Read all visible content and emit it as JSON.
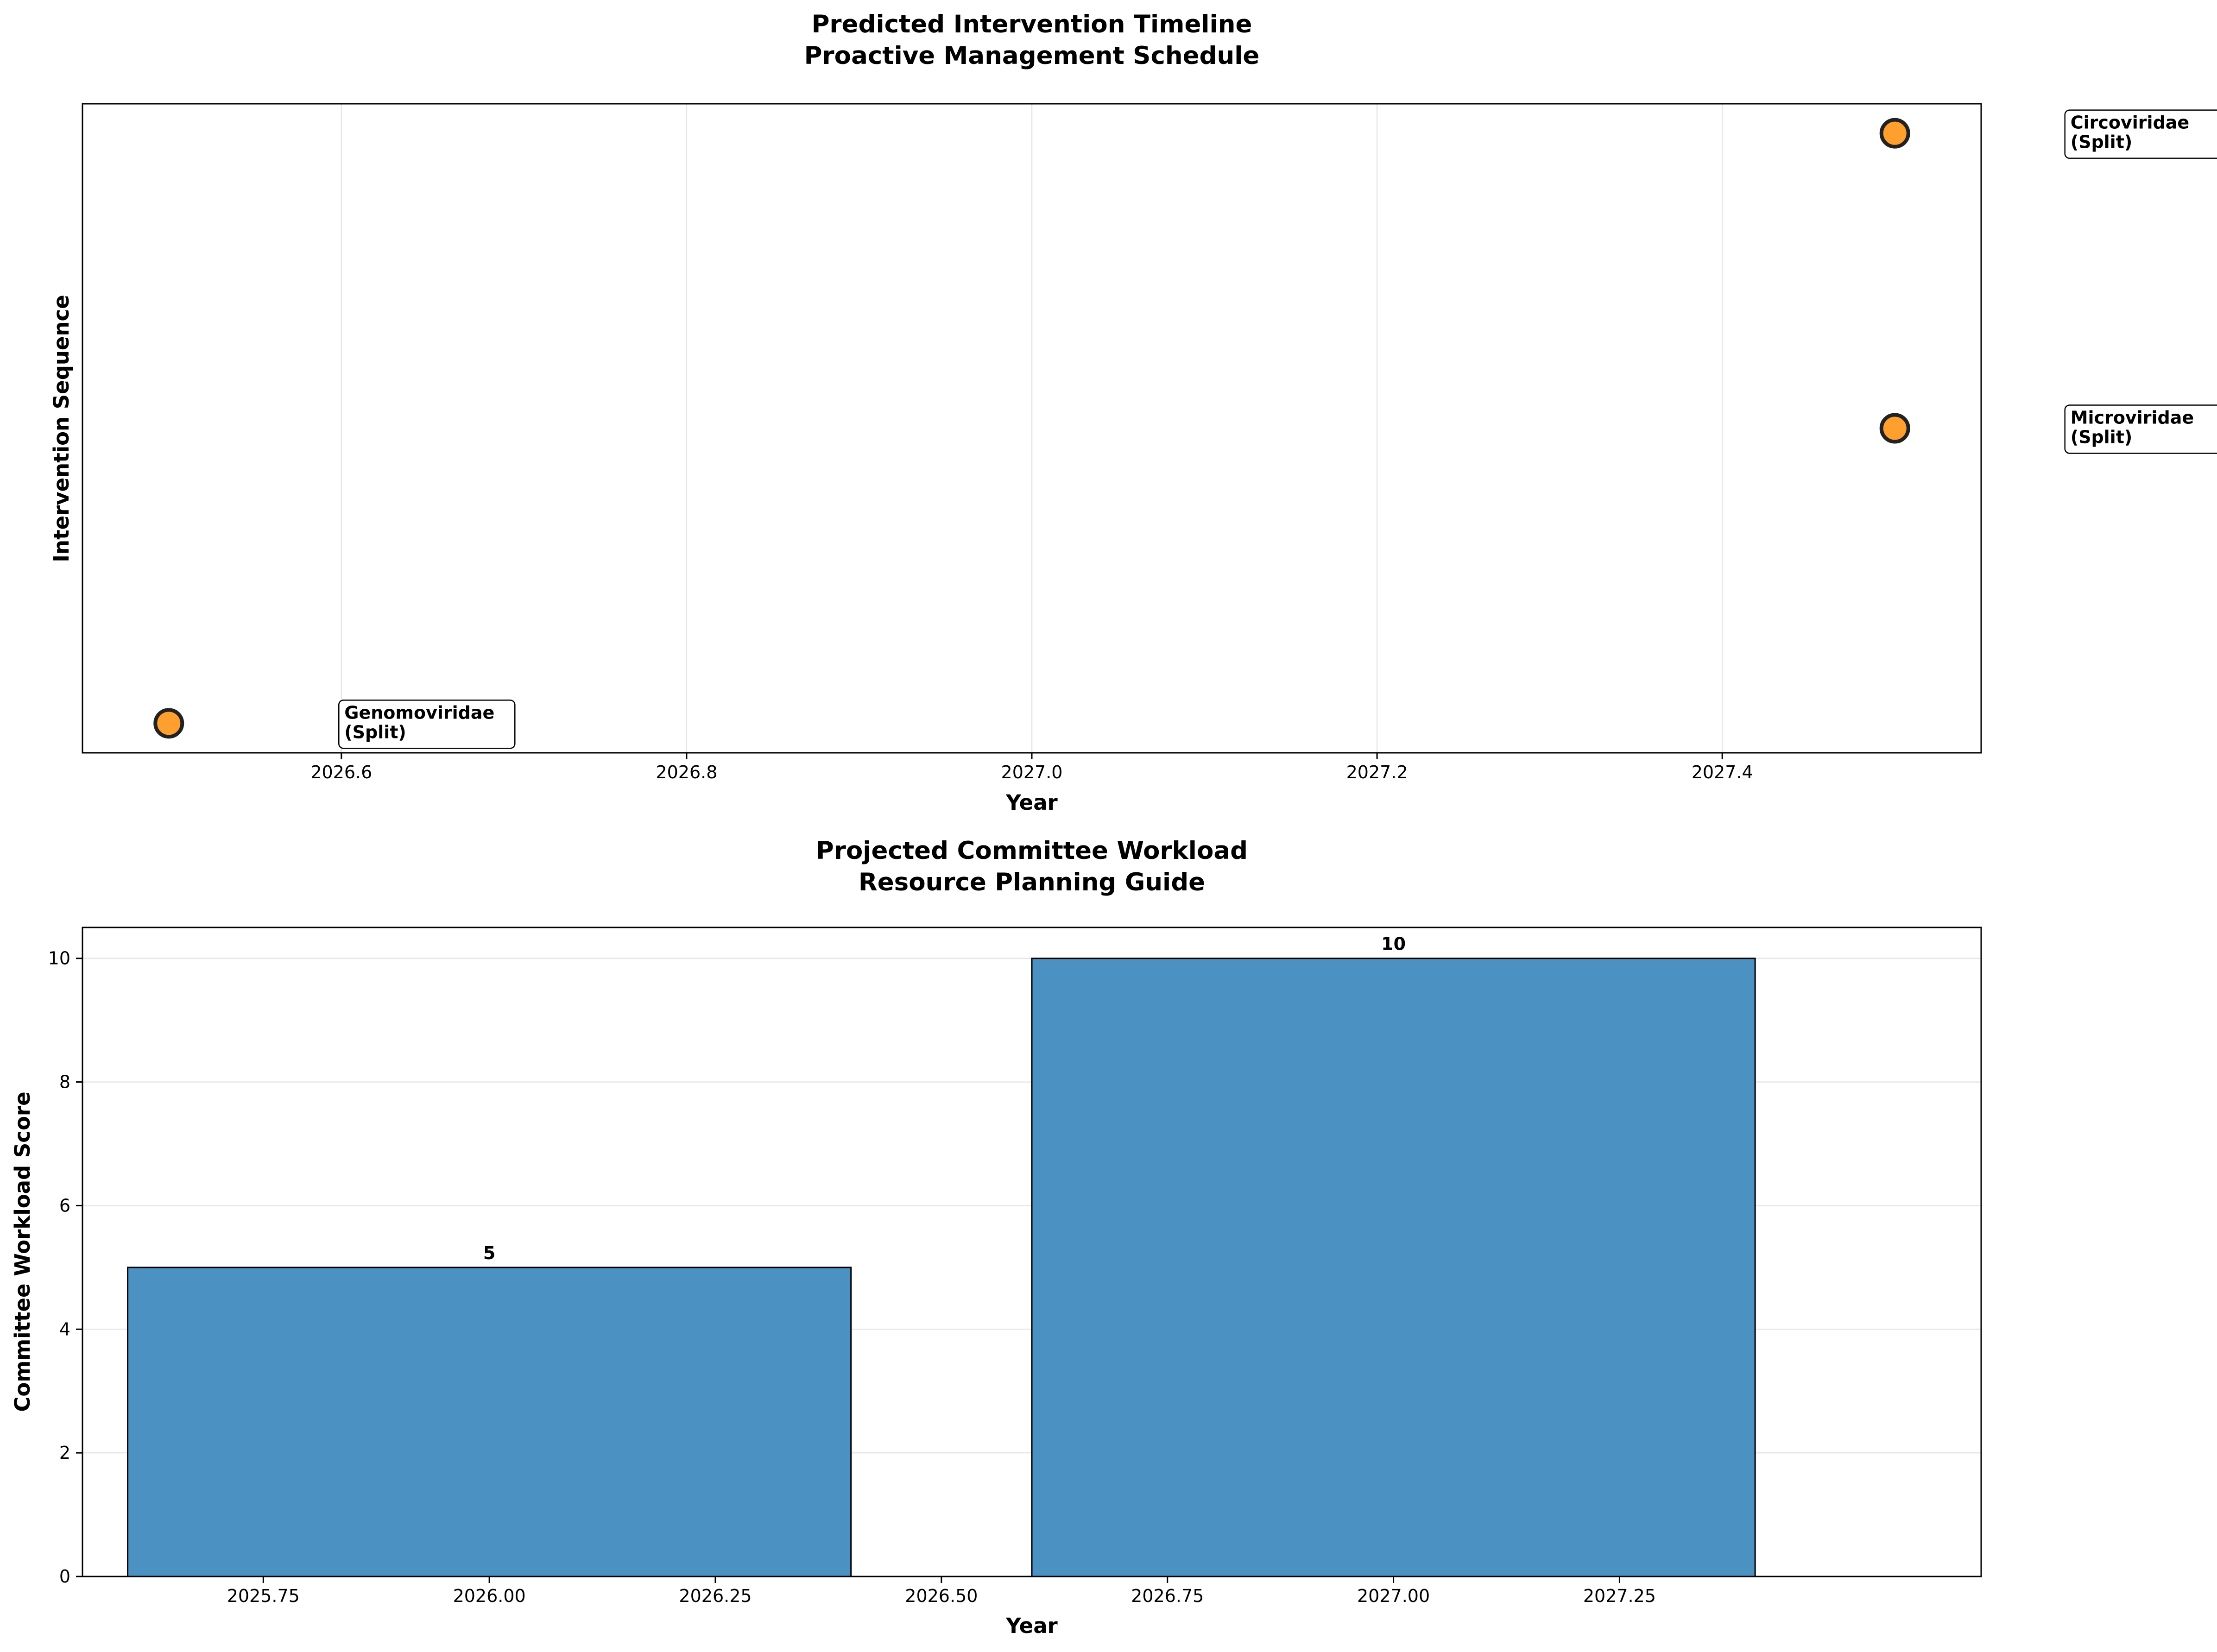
{
  "chart_data": [
    {
      "type": "scatter",
      "title_lines": [
        "Predicted Intervention Timeline",
        "Proactive Management Schedule"
      ],
      "xlabel": "Year",
      "ylabel": "Intervention Sequence",
      "xlim": [
        2026.45,
        2027.55
      ],
      "ylim": [
        -0.1,
        2.1
      ],
      "x_ticks": [
        "2026.6",
        "2026.8",
        "2027.0",
        "2027.2",
        "2027.4"
      ],
      "grid": "x",
      "marker_color": "#ff9f2e",
      "marker_edge_color": "#222222",
      "points": [
        {
          "x": 2026.5,
          "y": 0,
          "label_lines": [
            "Genomoviridae",
            "(Split)"
          ]
        },
        {
          "x": 2027.5,
          "y": 1,
          "label_lines": [
            "Microviridae",
            "(Split)"
          ]
        },
        {
          "x": 2027.5,
          "y": 2,
          "label_lines": [
            "Circoviridae",
            "(Split)"
          ]
        }
      ]
    },
    {
      "type": "bar",
      "title_lines": [
        "Projected Committee Workload",
        "Resource Planning Guide"
      ],
      "xlabel": "Year",
      "ylabel": "Committee Workload Score",
      "xlim": [
        2025.55,
        2027.65
      ],
      "ylim": [
        0,
        10.5
      ],
      "x_ticks": [
        "2025.75",
        "2026.00",
        "2026.25",
        "2026.50",
        "2026.75",
        "2027.00",
        "2027.25"
      ],
      "y_ticks": [
        "0",
        "2",
        "4",
        "6",
        "8",
        "10"
      ],
      "grid": "y",
      "bar_color": "#4b91c2",
      "bars": [
        {
          "x": 2026,
          "value": 5,
          "label": "5"
        },
        {
          "x": 2027,
          "value": 10,
          "label": "10"
        }
      ]
    }
  ]
}
